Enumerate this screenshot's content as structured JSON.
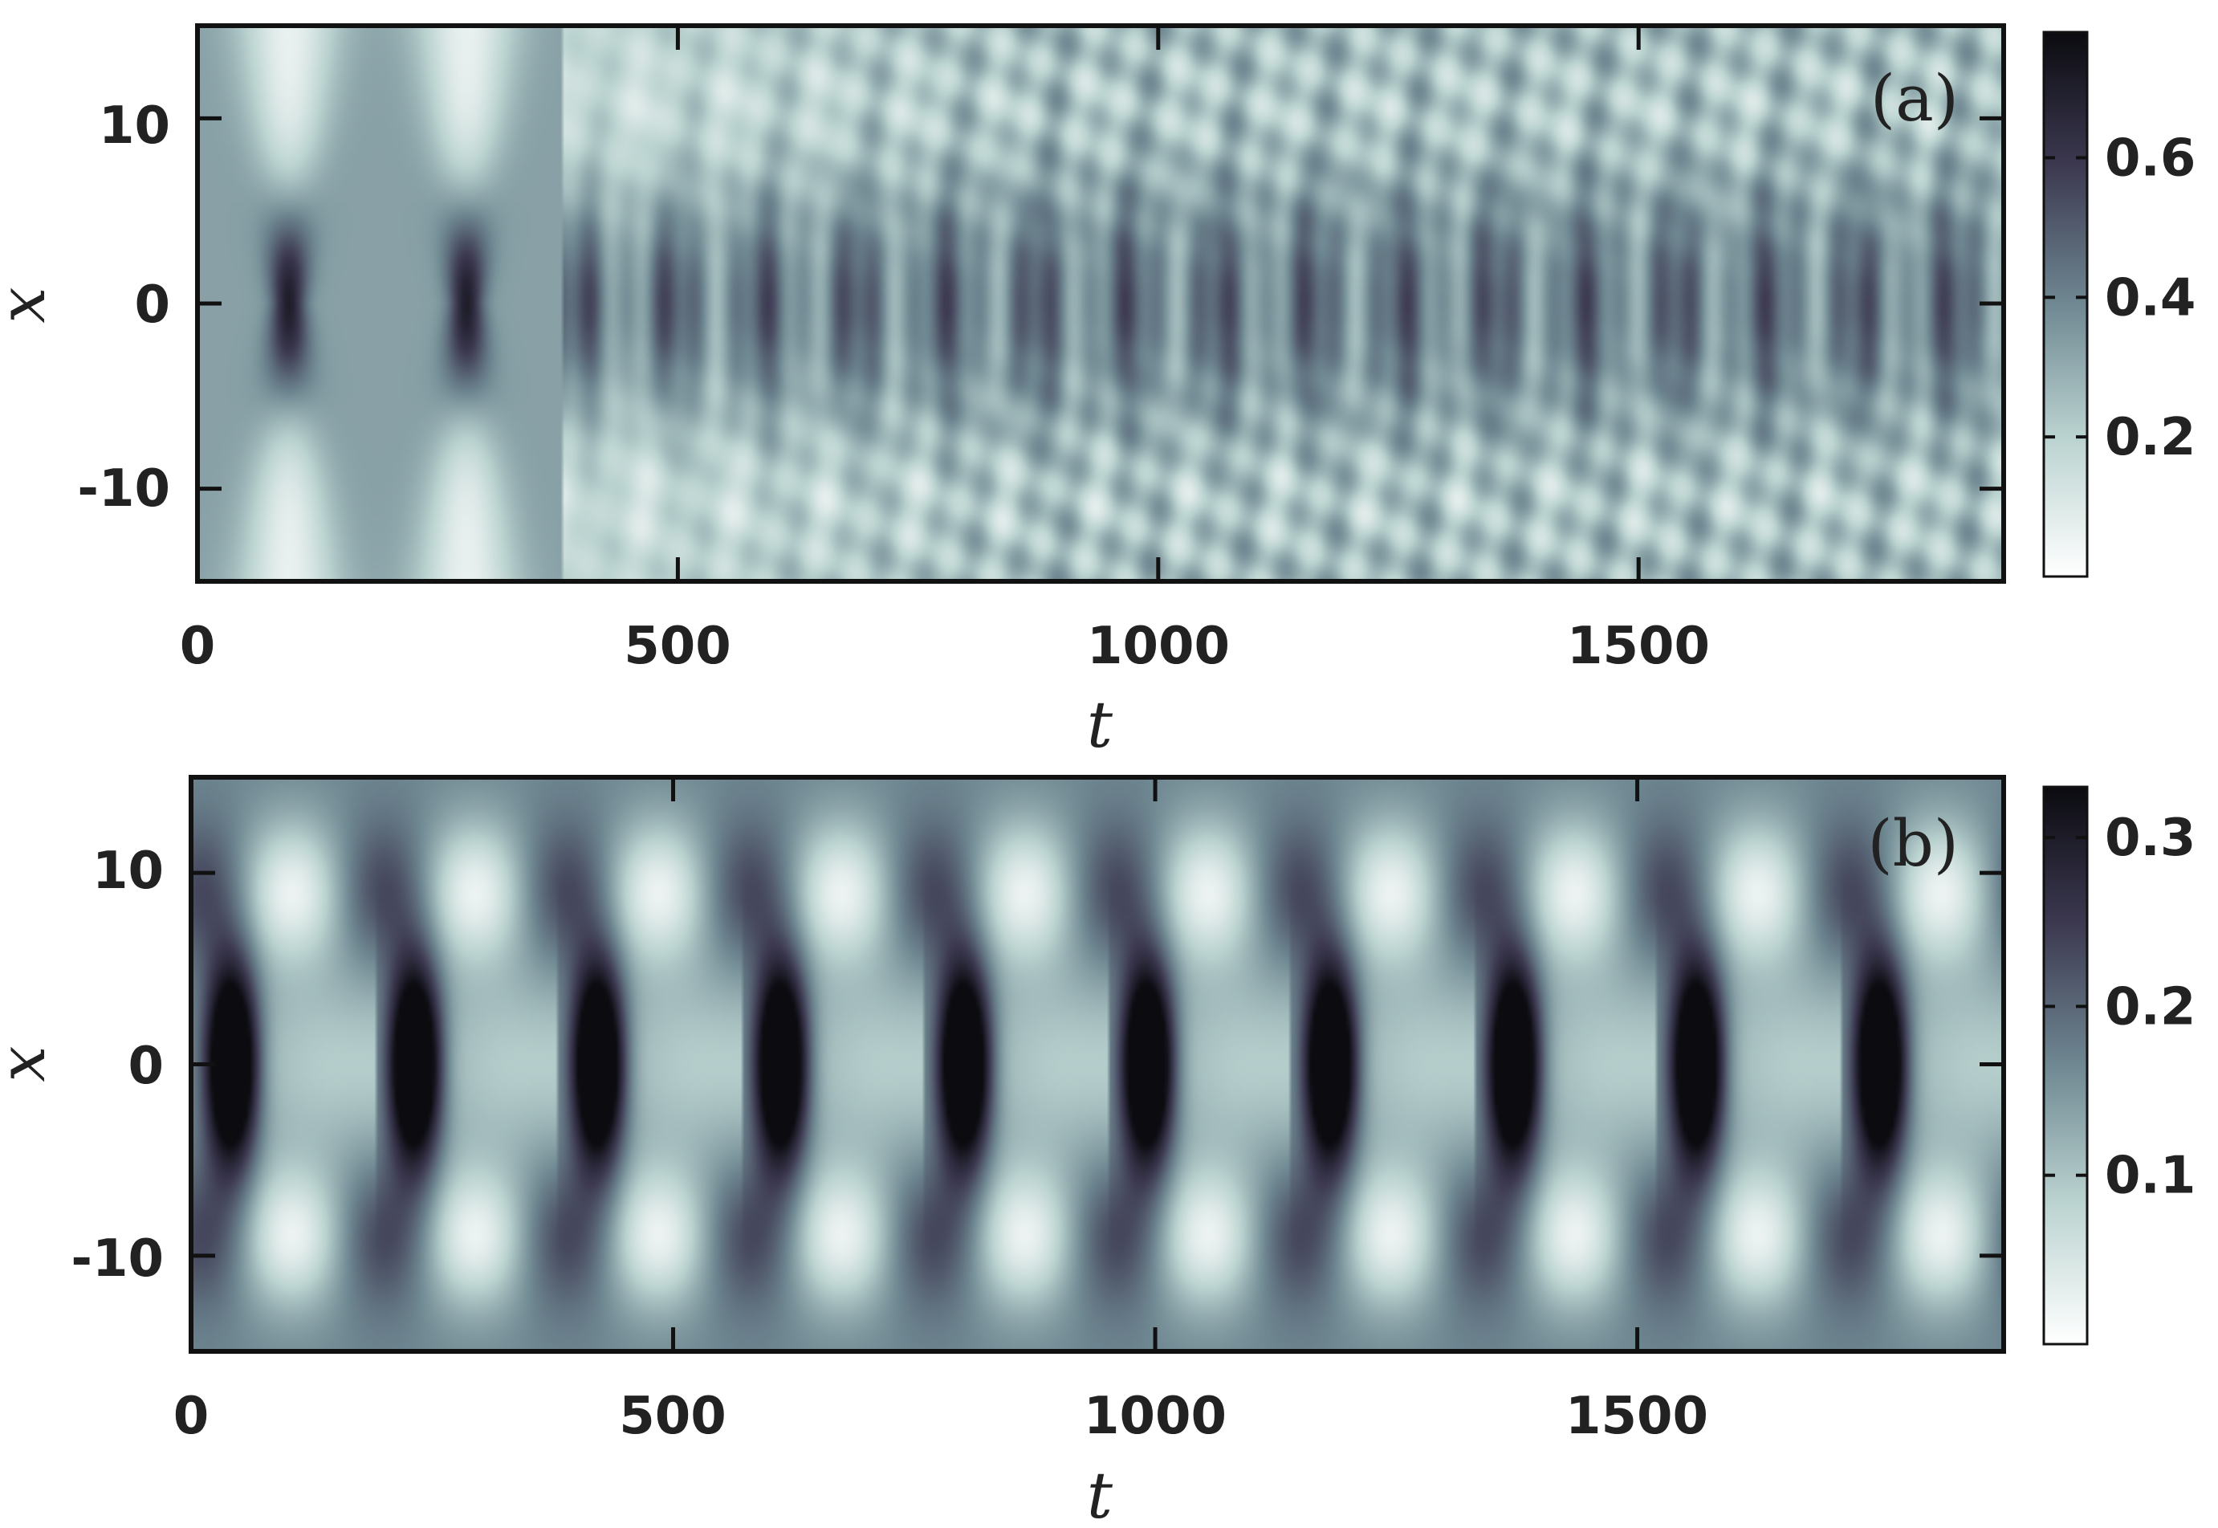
{
  "colors": {
    "colormap": [
      "#ffffff",
      "#bcd4d1",
      "#6f8892",
      "#3d3a52",
      "#0b0b10"
    ],
    "frame": "#111111"
  },
  "chart_data": [
    {
      "type": "heatmap",
      "panel_label": "(a)",
      "xlabel": "t",
      "ylabel": "x",
      "xlim": [
        0,
        1880
      ],
      "ylim": [
        -15,
        15
      ],
      "xticks": [
        0,
        500,
        1000,
        1500
      ],
      "xtick_labels": [
        "0",
        "500",
        "1000",
        "1500"
      ],
      "yticks": [
        10,
        0,
        -10
      ],
      "ytick_labels": [
        "10",
        "0",
        "-10"
      ],
      "colorbar": {
        "range": [
          0,
          0.78
        ],
        "ticks": [
          0.6,
          0.4,
          0.2
        ],
        "tick_labels": [
          "0.6",
          "0.4",
          "0.2"
        ]
      },
      "pattern": "initial breathing pulses at t≈95 and t≈280 with near-uniform background, then oscillatory peaks at x=0 growing irregular and stronger after t≈850"
    },
    {
      "type": "heatmap",
      "panel_label": "(b)",
      "xlabel": "t",
      "ylabel": "x",
      "xlim": [
        0,
        1880
      ],
      "ylim": [
        -15,
        15
      ],
      "xticks": [
        0,
        500,
        1000,
        1500
      ],
      "xtick_labels": [
        "0",
        "500",
        "1000",
        "1500"
      ],
      "yticks": [
        10,
        0,
        -10
      ],
      "ytick_labels": [
        "10",
        "0",
        "-10"
      ],
      "colorbar": {
        "range": [
          0,
          0.33
        ],
        "ticks": [
          0.3,
          0.2,
          0.1
        ],
        "tick_labels": [
          "0.3",
          "0.2",
          "0.1"
        ]
      },
      "pattern": "regular periodic breathing with period ≈190, double peaks at x=0 and bright arcs near |x|≈10"
    }
  ]
}
